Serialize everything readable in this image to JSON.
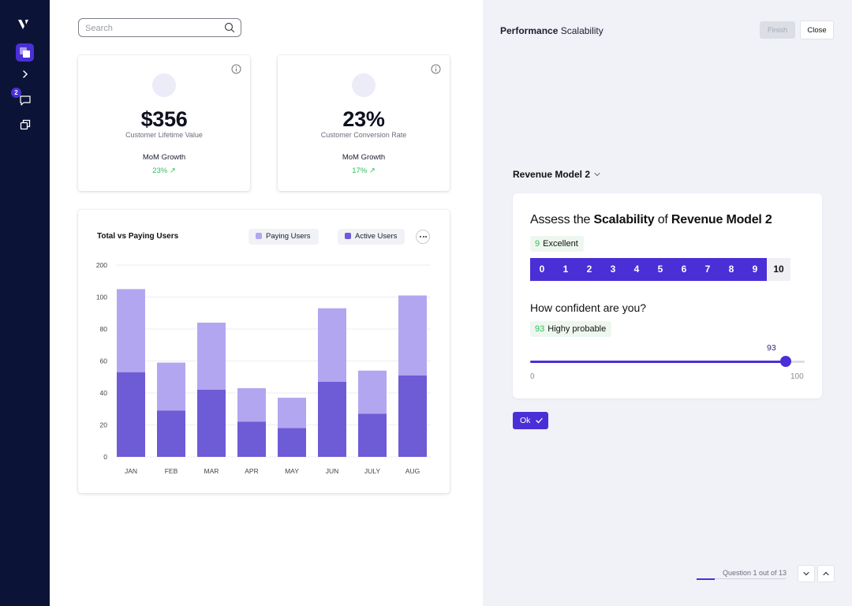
{
  "search": {
    "placeholder": "Search"
  },
  "sidebar": {
    "badge_count": "2"
  },
  "kpis": [
    {
      "value": "$356",
      "label": "Customer Lifetime Value",
      "mom_label": "MoM Growth",
      "growth": "23% ↗"
    },
    {
      "value": "23%",
      "label": "Customer Conversion Rate",
      "mom_label": "MoM Growth",
      "growth": "17% ↗"
    }
  ],
  "chart": {
    "title": "Total vs Paying Users",
    "legend": [
      {
        "label": "Paying Users",
        "color": "#b3a6f0"
      },
      {
        "label": "Active Users",
        "color": "#6e5bd6"
      }
    ]
  },
  "chart_data": {
    "type": "bar",
    "stacked": true,
    "title": "Total vs Paying Users",
    "categories": [
      "JAN",
      "FEB",
      "MAR",
      "APR",
      "MAY",
      "JUN",
      "JULY",
      "AUG"
    ],
    "y_ticks": [
      "0",
      "20",
      "40",
      "60",
      "80",
      "100",
      "200"
    ],
    "series": [
      {
        "name": "Active Users",
        "color": "#6e5bd6",
        "values": [
          53,
          29,
          42,
          22,
          18,
          47,
          27,
          51
        ]
      },
      {
        "name": "Paying Users",
        "color": "#b3a6f0",
        "values": [
          52,
          30,
          42,
          21,
          19,
          46,
          27,
          50
        ]
      }
    ],
    "grid": true,
    "legend_position": "top-right"
  },
  "panel": {
    "title_bold": "Performance",
    "title_rest": "Scalability",
    "finish_label": "Finish",
    "close_label": "Close",
    "model_select": "Revenue Model 2",
    "question": {
      "prefix": "Assess the ",
      "bold1": "Scalability",
      "mid": " of ",
      "bold2": "Revenue Model 2"
    },
    "rating": {
      "value": "9",
      "label": "Excellent",
      "scale": [
        "0",
        "1",
        "2",
        "3",
        "4",
        "5",
        "6",
        "7",
        "8",
        "9",
        "10"
      ],
      "selected": 9
    },
    "confidence": {
      "question": "How confident are you?",
      "value": "93",
      "label": "Highy probable",
      "min": "0",
      "max": "100",
      "fraction": 0.93
    },
    "ok_label": "Ok",
    "progress_label": "Question 1 out of 13",
    "progress_fraction": 0.2
  }
}
